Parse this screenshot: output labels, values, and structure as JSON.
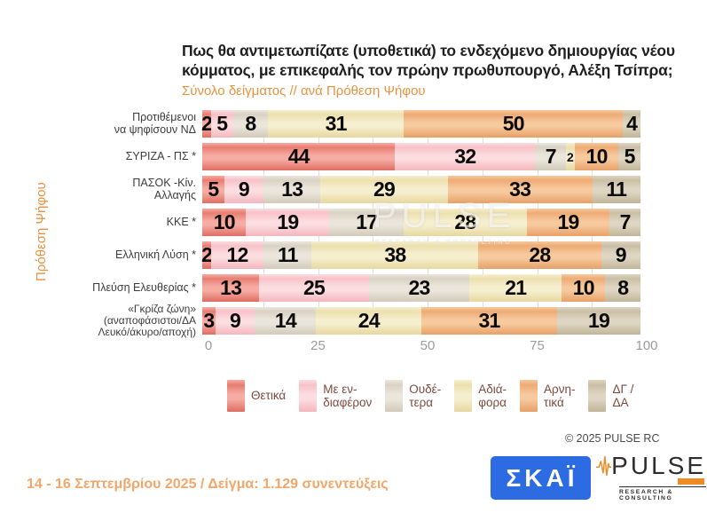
{
  "header": {
    "title": "Πως θα αντιμετωπίζατε (υποθετικά) το ενδεχόμενο δημιουργίας νέου\nκόμματος, με επικεφαλής τον πρώην πρωθυπουργό, Αλέξη Τσίπρα;",
    "subtitle": "Σύνολο δείγματος // ανά Πρόθεση Ψήφου",
    "title_color": "#1f1f1f",
    "subtitle_color": "#e8923f"
  },
  "chart_data": {
    "type": "bar",
    "variant": "horizontal-stacked",
    "title": "Πως θα αντιμετωπίζατε (υποθετικά) το ενδεχόμενο δημιουργίας νέου κόμματος, με επικεφαλής τον πρώην πρωθυπουργό, Αλέξη Τσίπρα;",
    "subtitle": "Σύνολο δείγματος // ανά Πρόθεση Ψήφου",
    "ylabel": "Πρόθεση Ψήφου",
    "ylabel_color": "#e8913e",
    "xlim": [
      0,
      100
    ],
    "xticks": [
      0,
      25,
      50,
      75,
      100
    ],
    "grid": "vertical minor lines every 12.5",
    "legend_position": "bottom",
    "categories": [
      "Προτιθέμενοι\nνα ψηφίσουν ΝΔ",
      "ΣΥΡΙΖΑ - ΠΣ *",
      "ΠΑΣΟΚ -Κίν.\nΑλλαγής",
      "ΚΚΕ *",
      "Ελληνική Λύση *",
      "Πλεύση Ελευθερίας *",
      "«Γκρίζα ζώνη»\n(αναποφάσιστοι/ΔΑ\nΛευκό/άκυρο/αποχή)"
    ],
    "series": [
      {
        "name": "Θετικά",
        "legend_label": "Θετικά",
        "color_top": "#e87d72",
        "color_mid": "#f6aca3",
        "color_bottom": "#df6e62",
        "values": [
          2,
          44,
          5,
          10,
          2,
          13,
          3
        ]
      },
      {
        "name": "Με ενδιαφέρον",
        "legend_label": "Με εν-\nδιαφέρον",
        "color_top": "#f7c2c8",
        "color_mid": "#fcdde0",
        "color_bottom": "#f3b6bd",
        "values": [
          5,
          32,
          9,
          19,
          12,
          25,
          9
        ]
      },
      {
        "name": "Ουδέτερα",
        "legend_label": "Ουδέ-\nτερα",
        "color_top": "#d9d2c4",
        "color_mid": "#ebe6dc",
        "color_bottom": "#d2cab9",
        "values": [
          8,
          7,
          13,
          17,
          11,
          23,
          14
        ]
      },
      {
        "name": "Αδιάφορα",
        "legend_label": "Αδιά-\nφορα",
        "color_top": "#ecdfae",
        "color_mid": "#f6efcf",
        "color_bottom": "#e7d8a0",
        "values": [
          31,
          2,
          29,
          28,
          38,
          21,
          24
        ]
      },
      {
        "name": "Αρνητικά",
        "legend_label": "Αρνη-\nτικά",
        "color_top": "#eeab74",
        "color_mid": "#f6c99e",
        "color_bottom": "#e8a067",
        "values": [
          50,
          10,
          33,
          19,
          28,
          10,
          31
        ]
      },
      {
        "name": "ΔΓ / ΔΑ",
        "legend_label": "ΔΓ /\nΔΑ",
        "color_top": "#cabfa5",
        "color_mid": "#ded5c2",
        "color_bottom": "#c1b598",
        "values": [
          4,
          5,
          11,
          7,
          9,
          8,
          19
        ]
      }
    ]
  },
  "watermark": {
    "line1": "PULSE",
    "line2": "RESEARCH & CONSULTING"
  },
  "copyright": "© 2025  PULSE RC",
  "footer": {
    "text": "14 - 16 Σεπτεμβρίου 2025  /  Δείγμα:  1.129 συνεντεύξεις",
    "color": "#f2a66a"
  },
  "logos": {
    "skai": {
      "text": "ΣΚΑΪ",
      "bg_color": "#2c6be2"
    },
    "pulse": {
      "name": "PULSE",
      "tagline": "RESEARCH & CONSULTING",
      "accent_color": "#f08a24"
    }
  }
}
